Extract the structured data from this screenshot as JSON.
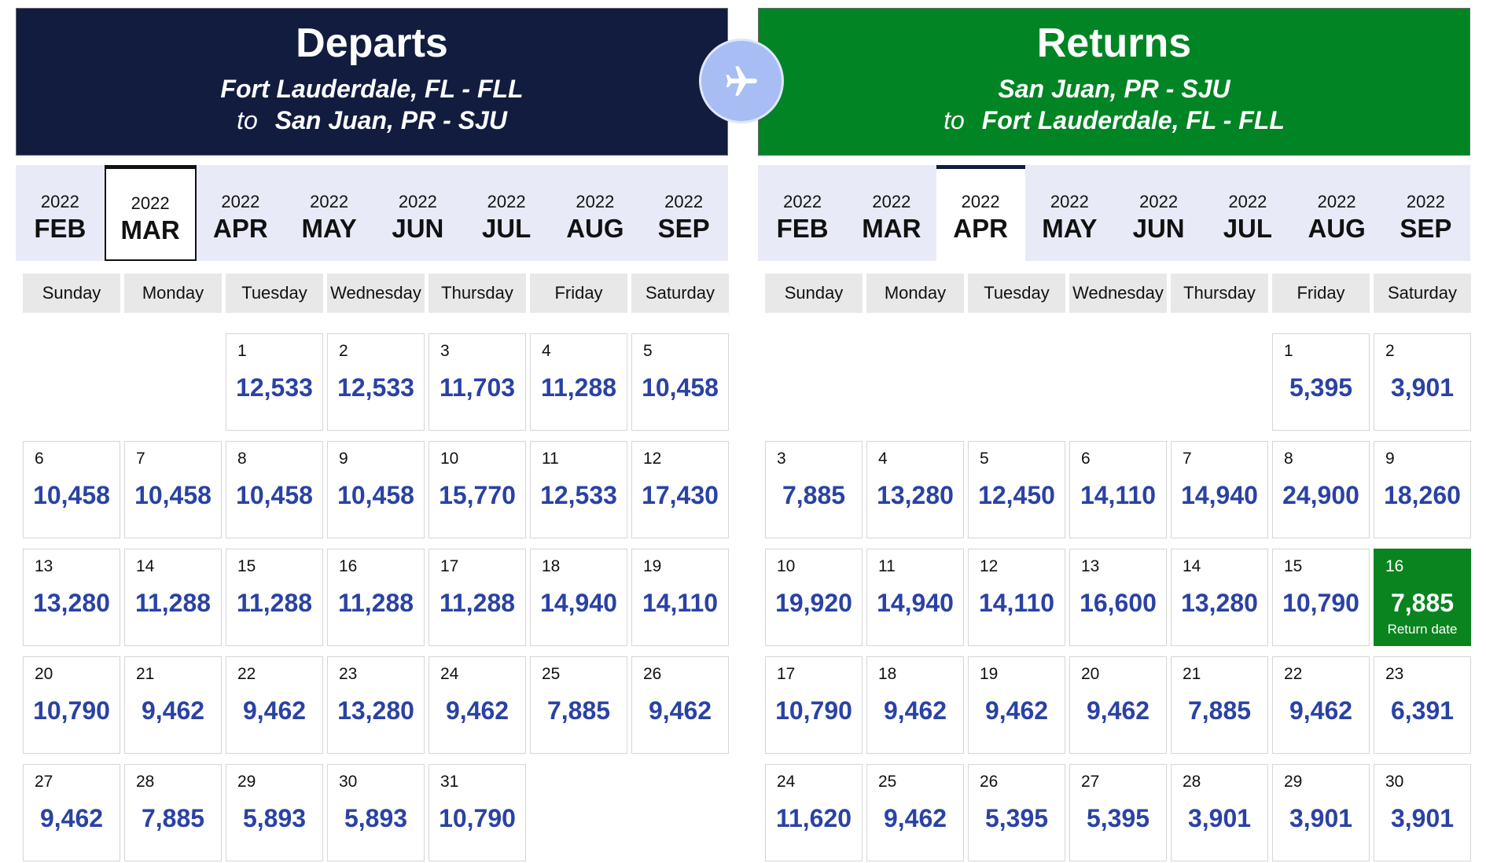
{
  "departs": {
    "title": "Departs",
    "origin": "Fort Lauderdale, FL - FLL",
    "to_label": "to",
    "destination": "San Juan, PR - SJU",
    "months": [
      {
        "year": "2022",
        "month": "FEB"
      },
      {
        "year": "2022",
        "month": "MAR",
        "selected": true
      },
      {
        "year": "2022",
        "month": "APR"
      },
      {
        "year": "2022",
        "month": "MAY"
      },
      {
        "year": "2022",
        "month": "JUN"
      },
      {
        "year": "2022",
        "month": "JUL"
      },
      {
        "year": "2022",
        "month": "AUG"
      },
      {
        "year": "2022",
        "month": "SEP"
      }
    ],
    "weekdays": [
      "Sunday",
      "Monday",
      "Tuesday",
      "Wednesday",
      "Thursday",
      "Friday",
      "Saturday"
    ],
    "leading_blanks": 2,
    "days": [
      {
        "day": "1",
        "price": "12,533"
      },
      {
        "day": "2",
        "price": "12,533"
      },
      {
        "day": "3",
        "price": "11,703"
      },
      {
        "day": "4",
        "price": "11,288"
      },
      {
        "day": "5",
        "price": "10,458"
      },
      {
        "day": "6",
        "price": "10,458"
      },
      {
        "day": "7",
        "price": "10,458"
      },
      {
        "day": "8",
        "price": "10,458"
      },
      {
        "day": "9",
        "price": "10,458"
      },
      {
        "day": "10",
        "price": "15,770"
      },
      {
        "day": "11",
        "price": "12,533"
      },
      {
        "day": "12",
        "price": "17,430"
      },
      {
        "day": "13",
        "price": "13,280"
      },
      {
        "day": "14",
        "price": "11,288"
      },
      {
        "day": "15",
        "price": "11,288"
      },
      {
        "day": "16",
        "price": "11,288"
      },
      {
        "day": "17",
        "price": "11,288"
      },
      {
        "day": "18",
        "price": "14,940"
      },
      {
        "day": "19",
        "price": "14,110"
      },
      {
        "day": "20",
        "price": "10,790"
      },
      {
        "day": "21",
        "price": "9,462"
      },
      {
        "day": "22",
        "price": "9,462"
      },
      {
        "day": "23",
        "price": "13,280"
      },
      {
        "day": "24",
        "price": "9,462"
      },
      {
        "day": "25",
        "price": "7,885"
      },
      {
        "day": "26",
        "price": "9,462"
      },
      {
        "day": "27",
        "price": "9,462"
      },
      {
        "day": "28",
        "price": "7,885"
      },
      {
        "day": "29",
        "price": "5,893"
      },
      {
        "day": "30",
        "price": "5,893"
      },
      {
        "day": "31",
        "price": "10,790"
      }
    ]
  },
  "returns": {
    "title": "Returns",
    "origin": "San Juan, PR - SJU",
    "to_label": "to",
    "destination": "Fort Lauderdale, FL - FLL",
    "months": [
      {
        "year": "2022",
        "month": "FEB"
      },
      {
        "year": "2022",
        "month": "MAR"
      },
      {
        "year": "2022",
        "month": "APR",
        "selected": true
      },
      {
        "year": "2022",
        "month": "MAY"
      },
      {
        "year": "2022",
        "month": "JUN"
      },
      {
        "year": "2022",
        "month": "JUL"
      },
      {
        "year": "2022",
        "month": "AUG"
      },
      {
        "year": "2022",
        "month": "SEP"
      }
    ],
    "weekdays": [
      "Sunday",
      "Monday",
      "Tuesday",
      "Wednesday",
      "Thursday",
      "Friday",
      "Saturday"
    ],
    "leading_blanks": 5,
    "days": [
      {
        "day": "1",
        "price": "5,395"
      },
      {
        "day": "2",
        "price": "3,901"
      },
      {
        "day": "3",
        "price": "7,885"
      },
      {
        "day": "4",
        "price": "13,280"
      },
      {
        "day": "5",
        "price": "12,450"
      },
      {
        "day": "6",
        "price": "14,110"
      },
      {
        "day": "7",
        "price": "14,940"
      },
      {
        "day": "8",
        "price": "24,900"
      },
      {
        "day": "9",
        "price": "18,260"
      },
      {
        "day": "10",
        "price": "19,920"
      },
      {
        "day": "11",
        "price": "14,940"
      },
      {
        "day": "12",
        "price": "14,110"
      },
      {
        "day": "13",
        "price": "16,600"
      },
      {
        "day": "14",
        "price": "13,280"
      },
      {
        "day": "15",
        "price": "10,790"
      },
      {
        "day": "16",
        "price": "7,885",
        "selected": true,
        "note": "Return date"
      },
      {
        "day": "17",
        "price": "10,790"
      },
      {
        "day": "18",
        "price": "9,462"
      },
      {
        "day": "19",
        "price": "9,462"
      },
      {
        "day": "20",
        "price": "9,462"
      },
      {
        "day": "21",
        "price": "7,885"
      },
      {
        "day": "22",
        "price": "9,462"
      },
      {
        "day": "23",
        "price": "6,391"
      },
      {
        "day": "24",
        "price": "11,620"
      },
      {
        "day": "25",
        "price": "9,462"
      },
      {
        "day": "26",
        "price": "5,395"
      },
      {
        "day": "27",
        "price": "5,395"
      },
      {
        "day": "28",
        "price": "3,901"
      },
      {
        "day": "29",
        "price": "3,901"
      },
      {
        "day": "30",
        "price": "3,901"
      }
    ]
  },
  "center_icon": "airplane-icon",
  "colors": {
    "departs_header": "#111c3f",
    "returns_header": "#008424",
    "price": "#2a42a3",
    "selected_day": "#0a841f",
    "month_strip": "#e8ebf7",
    "plane_badge": "#a7bdf4"
  }
}
